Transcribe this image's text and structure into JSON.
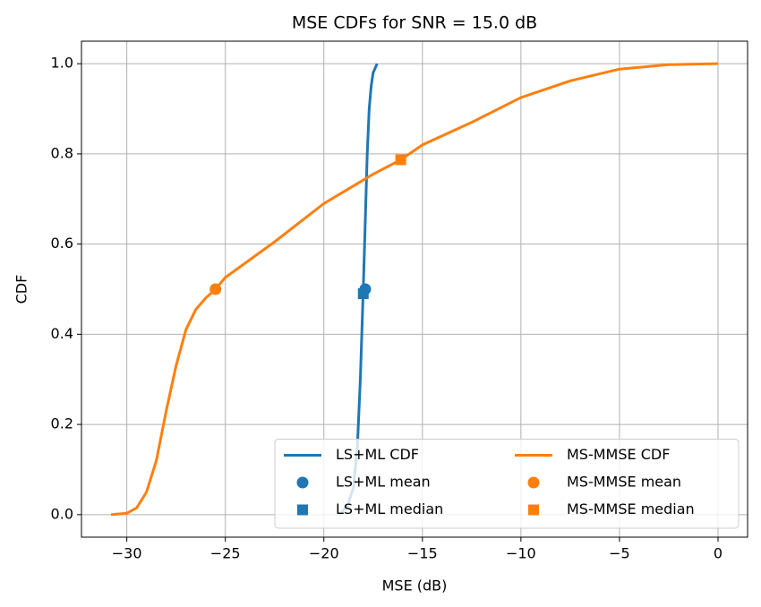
{
  "chart_data": {
    "type": "line",
    "title": "MSE CDFs for SNR = 15.0 dB",
    "x_label": "MSE (dB)",
    "y_label": "CDF",
    "xlim": [
      -32.3,
      1.5
    ],
    "ylim": [
      -0.05,
      1.05
    ],
    "xticks": [
      {
        "value": -30,
        "label": "−30"
      },
      {
        "value": -25,
        "label": "−25"
      },
      {
        "value": -20,
        "label": "−20"
      },
      {
        "value": -15,
        "label": "−15"
      },
      {
        "value": -10,
        "label": "−10"
      },
      {
        "value": -5,
        "label": "−5"
      },
      0
    ],
    "yticks": [
      {
        "value": 0,
        "label": "0.0"
      },
      {
        "value": 0.2,
        "label": "0.2"
      },
      {
        "value": 0.4,
        "label": "0.4"
      },
      {
        "value": 0.6,
        "label": "0.6"
      },
      {
        "value": 0.8,
        "label": "0.8"
      },
      {
        "value": 1,
        "label": "1.0"
      }
    ],
    "grid": true,
    "legend": "lower right",
    "legend_columns": 2,
    "series": [
      {
        "name": "LS+ML CDF",
        "color": "#1f77b4",
        "style": "line",
        "x": [
          -19.2,
          -18.8,
          -18.5,
          -18.3,
          -18.15,
          -18.0,
          -17.9,
          -17.8,
          -17.7,
          -17.6,
          -17.5,
          -17.3
        ],
        "values": [
          0,
          0.02,
          0.06,
          0.15,
          0.3,
          0.5,
          0.65,
          0.8,
          0.9,
          0.95,
          0.98,
          1.0
        ]
      },
      {
        "name": "LS+ML mean",
        "color": "#1f77b4",
        "style": "circle",
        "x": [
          -17.9
        ],
        "values": [
          0.5
        ]
      },
      {
        "name": "LS+ML median",
        "color": "#1f77b4",
        "style": "square",
        "x": [
          -18.0
        ],
        "values": [
          0.49
        ]
      },
      {
        "name": "MS-MMSE CDF",
        "color": "#ff7f0e",
        "style": "line",
        "x": [
          -30.8,
          -30,
          -29.5,
          -29,
          -28.5,
          -28,
          -27.5,
          -27,
          -26.5,
          -26,
          -25.5,
          -25,
          -22.5,
          -20,
          -17.5,
          -16.1,
          -15,
          -12.5,
          -10,
          -7.5,
          -5,
          -2.5,
          0
        ],
        "values": [
          0,
          0.003,
          0.015,
          0.05,
          0.12,
          0.23,
          0.33,
          0.41,
          0.455,
          0.48,
          0.5,
          0.526,
          0.605,
          0.69,
          0.755,
          0.787,
          0.82,
          0.87,
          0.925,
          0.962,
          0.988,
          0.998,
          1.0
        ]
      },
      {
        "name": "MS-MMSE mean",
        "color": "#ff7f0e",
        "style": "circle",
        "x": [
          -25.5
        ],
        "values": [
          0.5
        ]
      },
      {
        "name": "MS-MMSE median",
        "color": "#ff7f0e",
        "style": "square",
        "x": [
          -16.1
        ],
        "values": [
          0.787
        ]
      }
    ]
  }
}
